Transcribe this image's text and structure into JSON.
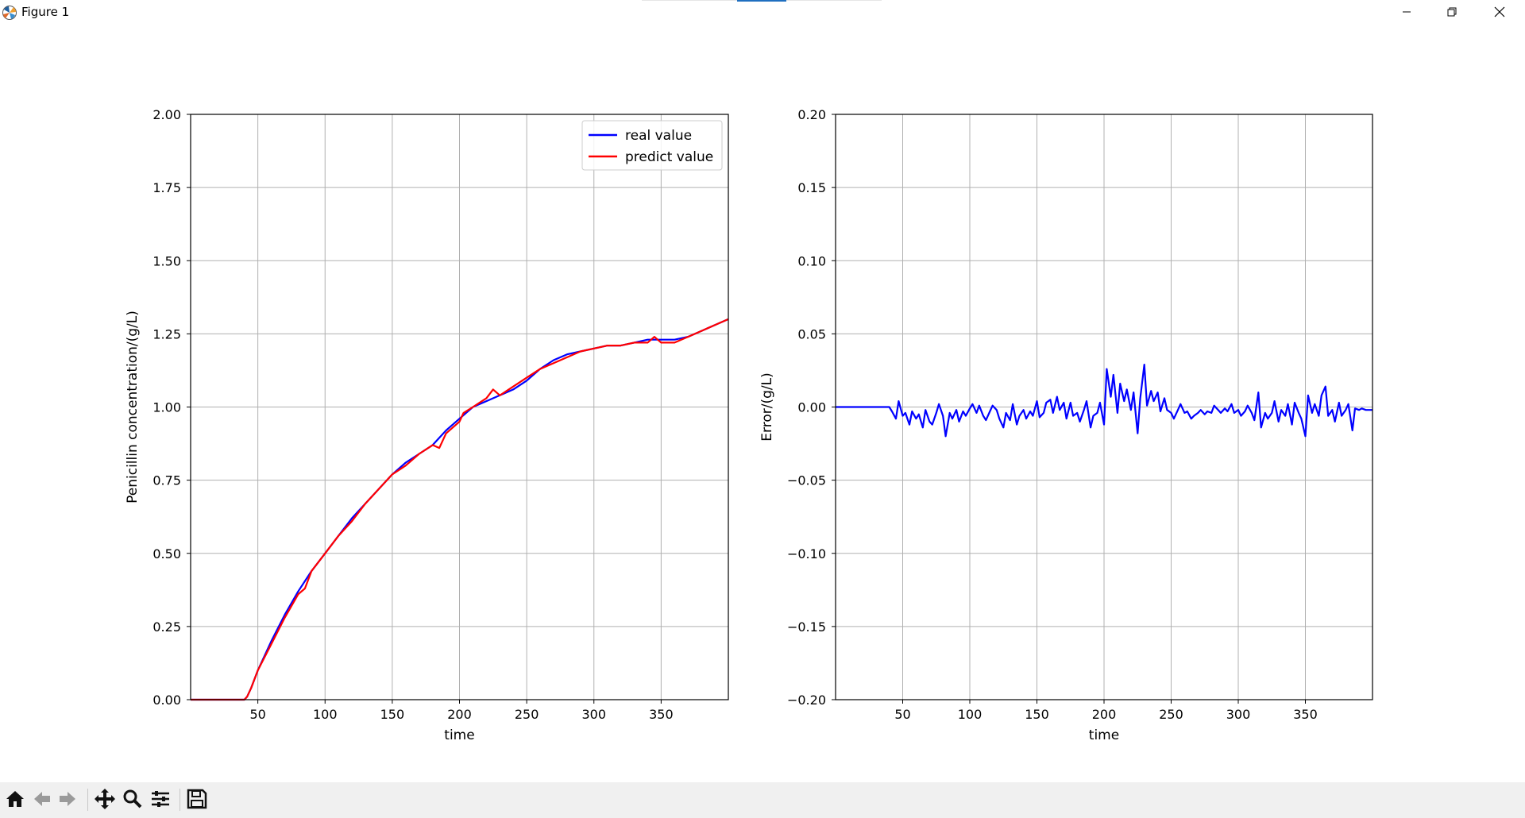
{
  "window": {
    "title": "Figure 1",
    "icons": {
      "app": "matplotlib-logo-icon",
      "minimize": "minimize-icon",
      "maximize": "restore-icon",
      "close": "close-icon"
    }
  },
  "toolbar": {
    "buttons": [
      {
        "name": "home",
        "icon": "home-icon"
      },
      {
        "name": "back",
        "icon": "arrow-left-icon"
      },
      {
        "name": "forward",
        "icon": "arrow-right-icon"
      },
      {
        "name": "pan",
        "icon": "move-icon"
      },
      {
        "name": "zoom",
        "icon": "magnifier-icon"
      },
      {
        "name": "configure-subplots",
        "icon": "sliders-icon"
      },
      {
        "name": "save",
        "icon": "floppy-disk-icon"
      }
    ]
  },
  "colors": {
    "real": "#0000ff",
    "predict": "#ff0000",
    "error": "#0000ff",
    "grid": "#b0b0b0"
  },
  "chart_data": [
    {
      "type": "line",
      "xlabel": "time",
      "ylabel": "Penicillin concentration/(g/L)",
      "xlim": [
        0,
        400
      ],
      "ylim": [
        0,
        2.0
      ],
      "xticks": [
        50,
        100,
        150,
        200,
        250,
        300,
        350
      ],
      "xtick_labels": [
        "50",
        "100",
        "150",
        "200",
        "250",
        "300",
        "350"
      ],
      "yticks": [
        0,
        0.25,
        0.5,
        0.75,
        1.0,
        1.25,
        1.5,
        1.75,
        2.0
      ],
      "ytick_labels": [
        "0.00",
        "0.25",
        "0.50",
        "0.75",
        "1.00",
        "1.25",
        "1.50",
        "1.75",
        "2.00"
      ],
      "grid": true,
      "legend_position": "top-right",
      "series": [
        {
          "name": "real value",
          "color": "#0000ff",
          "x": [
            0,
            40,
            42,
            45,
            50,
            60,
            70,
            80,
            90,
            100,
            110,
            120,
            130,
            140,
            150,
            160,
            170,
            180,
            190,
            200,
            210,
            220,
            230,
            240,
            250,
            260,
            270,
            280,
            290,
            300,
            310,
            320,
            330,
            340,
            350,
            360,
            370,
            380,
            390,
            400
          ],
          "y": [
            0,
            0,
            0.01,
            0.04,
            0.1,
            0.2,
            0.29,
            0.37,
            0.44,
            0.5,
            0.56,
            0.62,
            0.67,
            0.72,
            0.77,
            0.81,
            0.84,
            0.87,
            0.92,
            0.96,
            1.0,
            1.02,
            1.04,
            1.06,
            1.09,
            1.13,
            1.16,
            1.18,
            1.19,
            1.2,
            1.21,
            1.21,
            1.22,
            1.23,
            1.23,
            1.23,
            1.24,
            1.26,
            1.28,
            1.3
          ]
        },
        {
          "name": "predict value",
          "color": "#ff0000",
          "x": [
            0,
            40,
            42,
            45,
            50,
            60,
            70,
            80,
            85,
            90,
            100,
            110,
            120,
            130,
            140,
            150,
            160,
            170,
            180,
            185,
            190,
            200,
            203,
            210,
            220,
            225,
            230,
            240,
            250,
            260,
            270,
            280,
            290,
            300,
            310,
            320,
            330,
            340,
            345,
            350,
            360,
            370,
            380,
            390,
            400
          ],
          "y": [
            0,
            0,
            0.01,
            0.04,
            0.1,
            0.19,
            0.28,
            0.36,
            0.38,
            0.44,
            0.5,
            0.56,
            0.61,
            0.67,
            0.72,
            0.77,
            0.8,
            0.84,
            0.87,
            0.86,
            0.91,
            0.95,
            0.98,
            1.0,
            1.03,
            1.06,
            1.04,
            1.07,
            1.1,
            1.13,
            1.15,
            1.17,
            1.19,
            1.2,
            1.21,
            1.21,
            1.22,
            1.22,
            1.24,
            1.22,
            1.22,
            1.24,
            1.26,
            1.28,
            1.3
          ]
        }
      ]
    },
    {
      "type": "line",
      "xlabel": "time",
      "ylabel": "Error/(g/L)",
      "xlim": [
        0,
        400
      ],
      "ylim": [
        -0.2,
        0.2
      ],
      "xticks": [
        50,
        100,
        150,
        200,
        250,
        300,
        350
      ],
      "xtick_labels": [
        "50",
        "100",
        "150",
        "200",
        "250",
        "300",
        "350"
      ],
      "yticks": [
        -0.2,
        -0.15,
        -0.1,
        -0.05,
        0,
        0.05,
        0.1,
        0.15,
        0.2
      ],
      "ytick_labels": [
        "−0.20",
        "−0.15",
        "−0.10",
        "−0.05",
        "0.00",
        "0.05",
        "0.10",
        "0.15",
        "0.20"
      ],
      "grid": true,
      "series": [
        {
          "color": "#0000ff",
          "x": [
            0,
            40,
            42,
            45,
            47,
            50,
            52,
            55,
            57,
            60,
            62,
            65,
            67,
            70,
            72,
            75,
            77,
            80,
            82,
            85,
            87,
            90,
            92,
            95,
            97,
            100,
            102,
            105,
            107,
            110,
            112,
            115,
            117,
            120,
            122,
            125,
            127,
            130,
            132,
            135,
            137,
            140,
            142,
            145,
            147,
            150,
            152,
            155,
            157,
            160,
            162,
            165,
            167,
            170,
            172,
            175,
            177,
            180,
            182,
            185,
            187,
            190,
            192,
            195,
            197,
            200,
            202,
            205,
            207,
            210,
            212,
            215,
            217,
            220,
            222,
            225,
            227,
            230,
            232,
            235,
            237,
            240,
            242,
            245,
            247,
            250,
            252,
            255,
            257,
            260,
            262,
            265,
            267,
            270,
            272,
            275,
            277,
            280,
            282,
            285,
            287,
            290,
            292,
            295,
            297,
            300,
            302,
            305,
            307,
            310,
            312,
            315,
            317,
            320,
            322,
            325,
            327,
            330,
            332,
            335,
            337,
            340,
            342,
            345,
            347,
            350,
            352,
            355,
            357,
            360,
            362,
            365,
            367,
            370,
            372,
            375,
            377,
            380,
            382,
            385,
            387,
            390,
            392,
            395,
            397,
            400
          ],
          "y": [
            0,
            0,
            -0.003,
            -0.008,
            0.004,
            -0.006,
            -0.004,
            -0.012,
            -0.003,
            -0.008,
            -0.005,
            -0.014,
            -0.002,
            -0.01,
            -0.012,
            -0.004,
            0.002,
            -0.006,
            -0.02,
            -0.004,
            -0.008,
            -0.002,
            -0.01,
            -0.003,
            -0.006,
            -0.001,
            0.002,
            -0.004,
            0.001,
            -0.006,
            -0.009,
            -0.003,
            0.001,
            -0.002,
            -0.008,
            -0.014,
            -0.004,
            -0.009,
            0.002,
            -0.012,
            -0.006,
            -0.002,
            -0.008,
            -0.003,
            -0.006,
            0.004,
            -0.007,
            -0.004,
            0.003,
            0.005,
            -0.004,
            0.007,
            -0.002,
            0.003,
            -0.008,
            0.003,
            -0.006,
            -0.004,
            -0.01,
            -0.002,
            0.004,
            -0.014,
            -0.006,
            -0.004,
            0.003,
            -0.012,
            0.026,
            0.007,
            0.022,
            -0.004,
            0.016,
            0.004,
            0.012,
            -0.002,
            0.01,
            -0.018,
            0.006,
            0.029,
            0.001,
            0.011,
            0.004,
            0.01,
            -0.003,
            0.006,
            -0.002,
            -0.004,
            -0.008,
            -0.002,
            0.002,
            -0.004,
            -0.003,
            -0.008,
            -0.006,
            -0.004,
            -0.002,
            -0.005,
            -0.003,
            -0.004,
            0.001,
            -0.002,
            -0.004,
            -0.001,
            -0.003,
            0.002,
            -0.004,
            -0.002,
            -0.006,
            -0.003,
            0.001,
            -0.004,
            -0.009,
            0.01,
            -0.014,
            -0.004,
            -0.008,
            -0.004,
            0.004,
            -0.01,
            -0.002,
            -0.006,
            0.002,
            -0.012,
            0.003,
            -0.004,
            -0.008,
            -0.02,
            0.008,
            -0.004,
            0.002,
            -0.006,
            0.008,
            0.014,
            -0.006,
            -0.002,
            -0.01,
            0.003,
            -0.006,
            -0.002,
            0.002,
            -0.016,
            -0.001,
            -0.002,
            -0.001,
            -0.002,
            -0.002,
            -0.002
          ]
        }
      ]
    }
  ]
}
